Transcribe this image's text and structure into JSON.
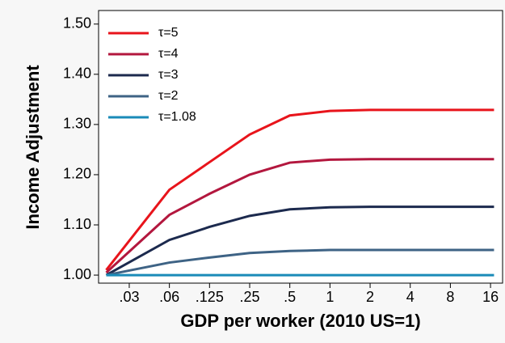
{
  "chart_data": {
    "type": "line",
    "xlabel": "GDP per worker (2010 US=1)",
    "ylabel": "Income Adjustment",
    "x": [
      0.021,
      0.0625,
      0.125,
      0.25,
      0.5,
      1,
      2,
      4,
      8,
      17
    ],
    "series": [
      {
        "name": "τ=5",
        "color": "#e8141b",
        "values": [
          1.01,
          1.17,
          1.225,
          1.28,
          1.318,
          1.327,
          1.329,
          1.329,
          1.329,
          1.329
        ]
      },
      {
        "name": "τ=4",
        "color": "#b3173e",
        "values": [
          1.005,
          1.12,
          1.162,
          1.2,
          1.224,
          1.23,
          1.231,
          1.231,
          1.231,
          1.231
        ]
      },
      {
        "name": "τ=3",
        "color": "#1c2a4e",
        "values": [
          1.0,
          1.07,
          1.096,
          1.118,
          1.131,
          1.135,
          1.136,
          1.136,
          1.136,
          1.136
        ]
      },
      {
        "name": "τ=2",
        "color": "#3e6385",
        "values": [
          1.0,
          1.025,
          1.035,
          1.044,
          1.048,
          1.05,
          1.05,
          1.05,
          1.05,
          1.05
        ]
      },
      {
        "name": "τ=1.08",
        "color": "#1a8bb8",
        "values": [
          1.0,
          1.0,
          1.0,
          1.0,
          1.0,
          1.0,
          1.0,
          1.0,
          1.0,
          1.0
        ]
      }
    ],
    "xscale": "log",
    "xlim": [
      0.0184,
      19.7
    ],
    "xticks": [
      {
        "value": 0.03125,
        "label": ".03"
      },
      {
        "value": 0.0625,
        "label": ".06"
      },
      {
        "value": 0.125,
        "label": ".125"
      },
      {
        "value": 0.25,
        "label": ".25"
      },
      {
        "value": 0.5,
        "label": ".5"
      },
      1,
      2,
      4,
      8,
      16
    ],
    "ylim": [
      0.984,
      1.527
    ],
    "yticks": [
      {
        "value": 1,
        "label": "1.00"
      },
      {
        "value": 1.1,
        "label": "1.10"
      },
      {
        "value": 1.2,
        "label": "1.20"
      },
      {
        "value": 1.3,
        "label": "1.30"
      },
      {
        "value": 1.4,
        "label": "1.40"
      },
      {
        "value": 1.5,
        "label": "1.50"
      }
    ],
    "legend": "upper-left"
  }
}
